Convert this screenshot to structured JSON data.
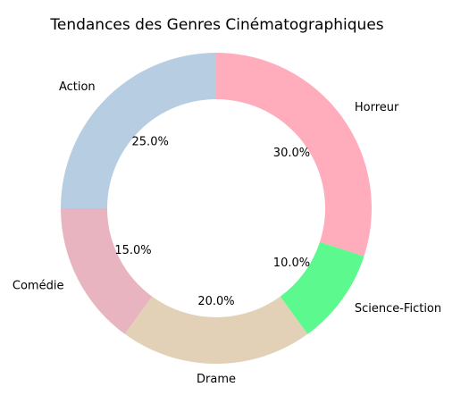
{
  "chart_data": {
    "type": "pie",
    "variant": "donut",
    "title": "Tendances des Genres Cinématographiques",
    "slices": [
      {
        "label": "Horreur",
        "value": 30.0,
        "display": "30.0%",
        "color": "#ffadbc"
      },
      {
        "label": "Science-Fiction",
        "value": 10.0,
        "display": "10.0%",
        "color": "#5cf98f"
      },
      {
        "label": "Drame",
        "value": 20.0,
        "display": "20.0%",
        "color": "#e2d1b6"
      },
      {
        "label": "Comédie",
        "value": 15.0,
        "display": "15.0%",
        "color": "#e8b4c0"
      },
      {
        "label": "Action",
        "value": 25.0,
        "display": "25.0%",
        "color": "#b7cde2"
      }
    ],
    "start_angle_deg": 90,
    "direction": "clockwise",
    "legend": "none"
  }
}
